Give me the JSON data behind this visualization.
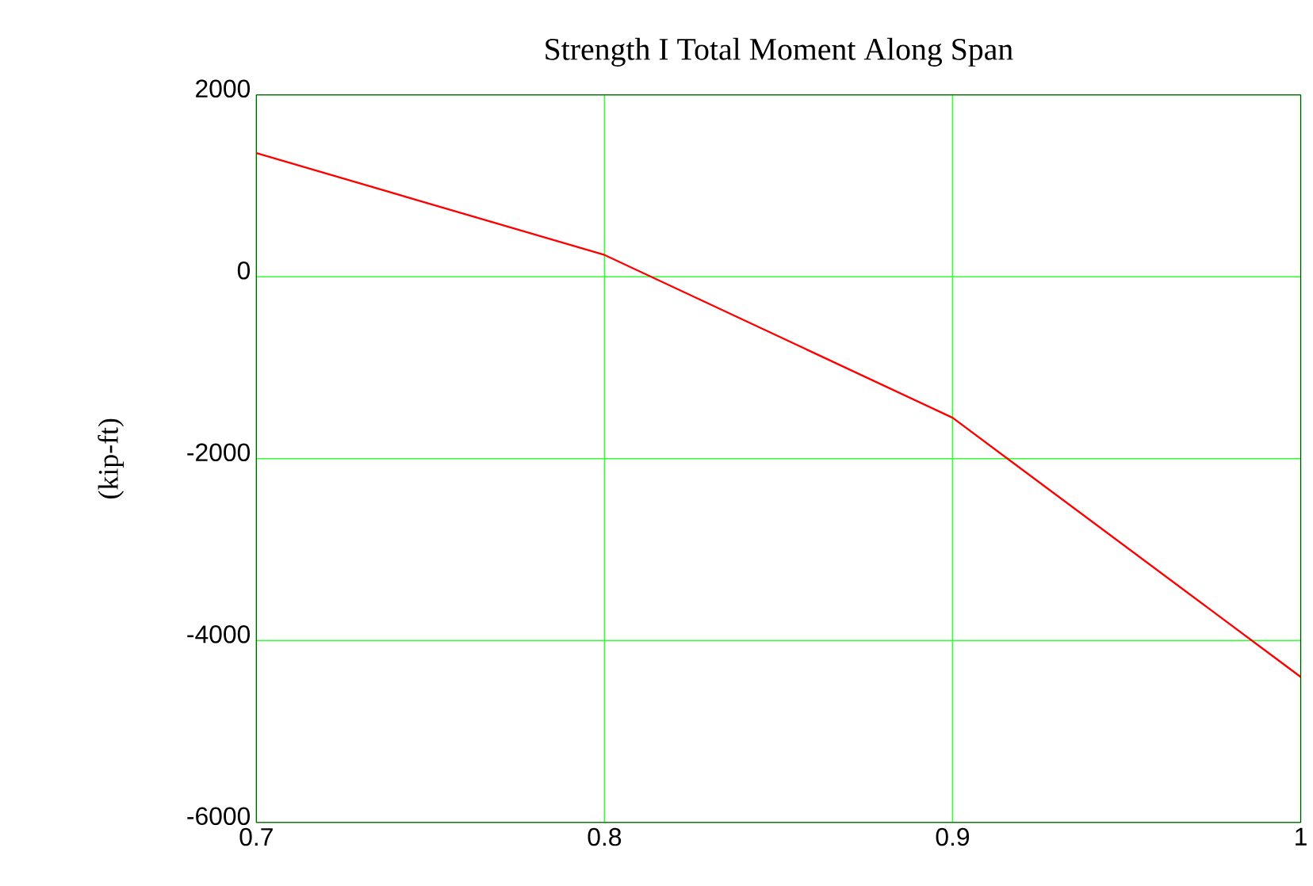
{
  "chart_data": {
    "type": "line",
    "title": "Strength I Total Moment Along Span",
    "ylabel": "(kip-ft)",
    "x": [
      0.7,
      0.8,
      0.9,
      1.0
    ],
    "series": [
      {
        "color": "#ff0000",
        "values": [
          1360,
          240,
          -1550,
          -4400
        ]
      }
    ],
    "xlim": [
      0.7,
      1.0
    ],
    "xticks": [
      0.7,
      0.8,
      0.9,
      1
    ],
    "ylim": [
      -6000,
      2000
    ],
    "yticks": [
      -6000,
      -4000,
      -2000,
      0,
      2000
    ],
    "grid": true,
    "marker": "none",
    "line_style": "solid"
  }
}
